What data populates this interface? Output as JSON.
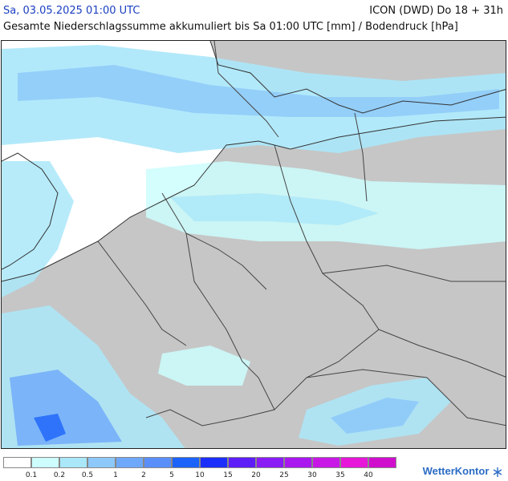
{
  "header": {
    "date": "Sa, 03.05.2025 01:00 UTC",
    "model": "ICON (DWD) Do 18 + 31h",
    "description": "Gesamte Niederschlagssumme akkumuliert bis Sa 01:00 UTC [mm] / Bodendruck [hPa]"
  },
  "legend": {
    "colors": [
      "#ffffff",
      "#cdfdfd",
      "#aae7f9",
      "#8cc8fa",
      "#6ea8fa",
      "#5a8ffa",
      "#1c63fa",
      "#1c2ffa",
      "#5e1ef8",
      "#8a1cf5",
      "#a818ef",
      "#c818e6",
      "#e617d8",
      "#d00fcc"
    ],
    "labels": [
      "0.1",
      "0.2",
      "0.5",
      "1",
      "2",
      "5",
      "10",
      "15",
      "20",
      "25",
      "30",
      "35",
      "40"
    ]
  },
  "brand": {
    "name": "WetterKontor",
    "icon": "snowflake-icon"
  },
  "map": {
    "land_color": "#c6c6c6",
    "sea_color": "#ffffff"
  }
}
